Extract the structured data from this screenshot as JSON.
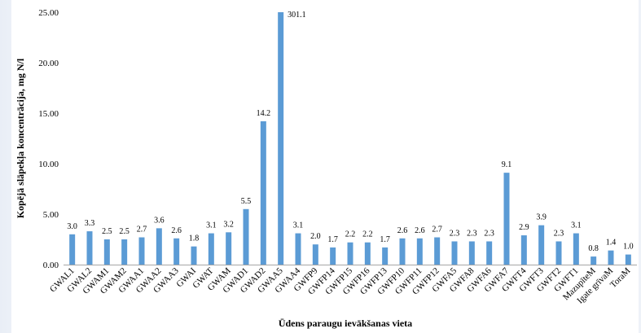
{
  "chart_data": {
    "type": "bar",
    "xlabel": "Ūdens paraugu ievākšanas vieta",
    "ylabel": "Kopējā slāpekļa koncentrācija, mg N/l",
    "ylim": [
      0,
      25
    ],
    "yticks": [
      "0.00",
      "5.00",
      "10.00",
      "15.00",
      "20.00",
      "25.00"
    ],
    "grid": false,
    "bar_color": "#5b9bd5",
    "categories": [
      "GWAL1",
      "GWAL2",
      "GWAM1",
      "GWAM2",
      "GWAA1",
      "GWAA2",
      "GWAA3",
      "GWAI",
      "GWAT",
      "GWAM",
      "GWAD1",
      "GWAD2",
      "GWAA5",
      "GWAA4",
      "GWFP9",
      "GWFP14",
      "GWFP15",
      "GWFP16",
      "GWFP13",
      "GWFP10",
      "GWFP11",
      "GWFP12",
      "GWFA5",
      "GWFA8",
      "GWFA6",
      "GWFA7",
      "GWFT4",
      "GWFT3",
      "GWFT2",
      "GWFT1",
      "MazupīteM",
      "Igate grīvaM",
      "ToraM"
    ],
    "values": [
      3.0,
      3.3,
      2.5,
      2.5,
      2.7,
      3.6,
      2.6,
      1.8,
      3.1,
      3.2,
      5.5,
      14.2,
      301.1,
      3.1,
      2.0,
      1.7,
      2.2,
      2.2,
      1.7,
      2.6,
      2.6,
      2.7,
      2.3,
      2.3,
      2.3,
      9.1,
      2.9,
      3.9,
      2.3,
      3.1,
      0.8,
      1.4,
      1.0
    ],
    "data_labels": [
      "3.0",
      "3.3",
      "2.5",
      "2.5",
      "2.7",
      "3.6",
      "2.6",
      "1.8",
      "3.1",
      "3.2",
      "5.5",
      "14.2",
      "301.1",
      "3.1",
      "2.0",
      "1.7",
      "2.2",
      "2.2",
      "1.7",
      "2.6",
      "2.6",
      "2.7",
      "2.3",
      "2.3",
      "2.3",
      "9.1",
      "2.9",
      "3.9",
      "2.3",
      "3.1",
      "0.8",
      "1.4",
      "1.0"
    ]
  }
}
